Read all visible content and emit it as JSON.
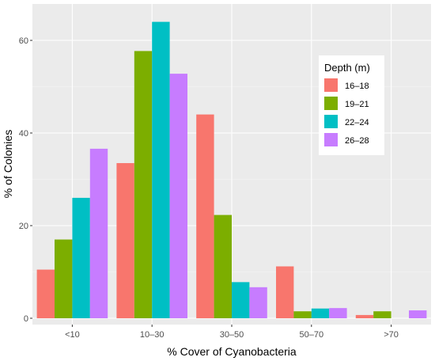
{
  "chart_data": {
    "type": "bar",
    "xlabel": "% Cover of Cyanobacteria",
    "ylabel": "% of Colonies",
    "categories": [
      "<10",
      "10–30",
      "30–50",
      "50–70",
      ">70"
    ],
    "ylim": [
      -2,
      66
    ],
    "yticks": [
      0,
      20,
      40,
      60
    ],
    "grid": true,
    "legend": {
      "title": "Depth (m)",
      "placement": "top-right"
    },
    "series": [
      {
        "name": "16–18",
        "color": "#F8766D",
        "values": [
          10.5,
          33.5,
          44,
          11.2,
          0.7
        ]
      },
      {
        "name": "19–21",
        "color": "#7CAE00",
        "values": [
          17,
          57.7,
          22.3,
          1.5,
          1.5
        ]
      },
      {
        "name": "22–24",
        "color": "#00BFC4",
        "values": [
          26,
          64,
          7.8,
          2.1,
          0
        ]
      },
      {
        "name": "26–28",
        "color": "#C77CFF",
        "values": [
          36.6,
          52.8,
          6.7,
          2.2,
          1.7
        ]
      }
    ]
  }
}
